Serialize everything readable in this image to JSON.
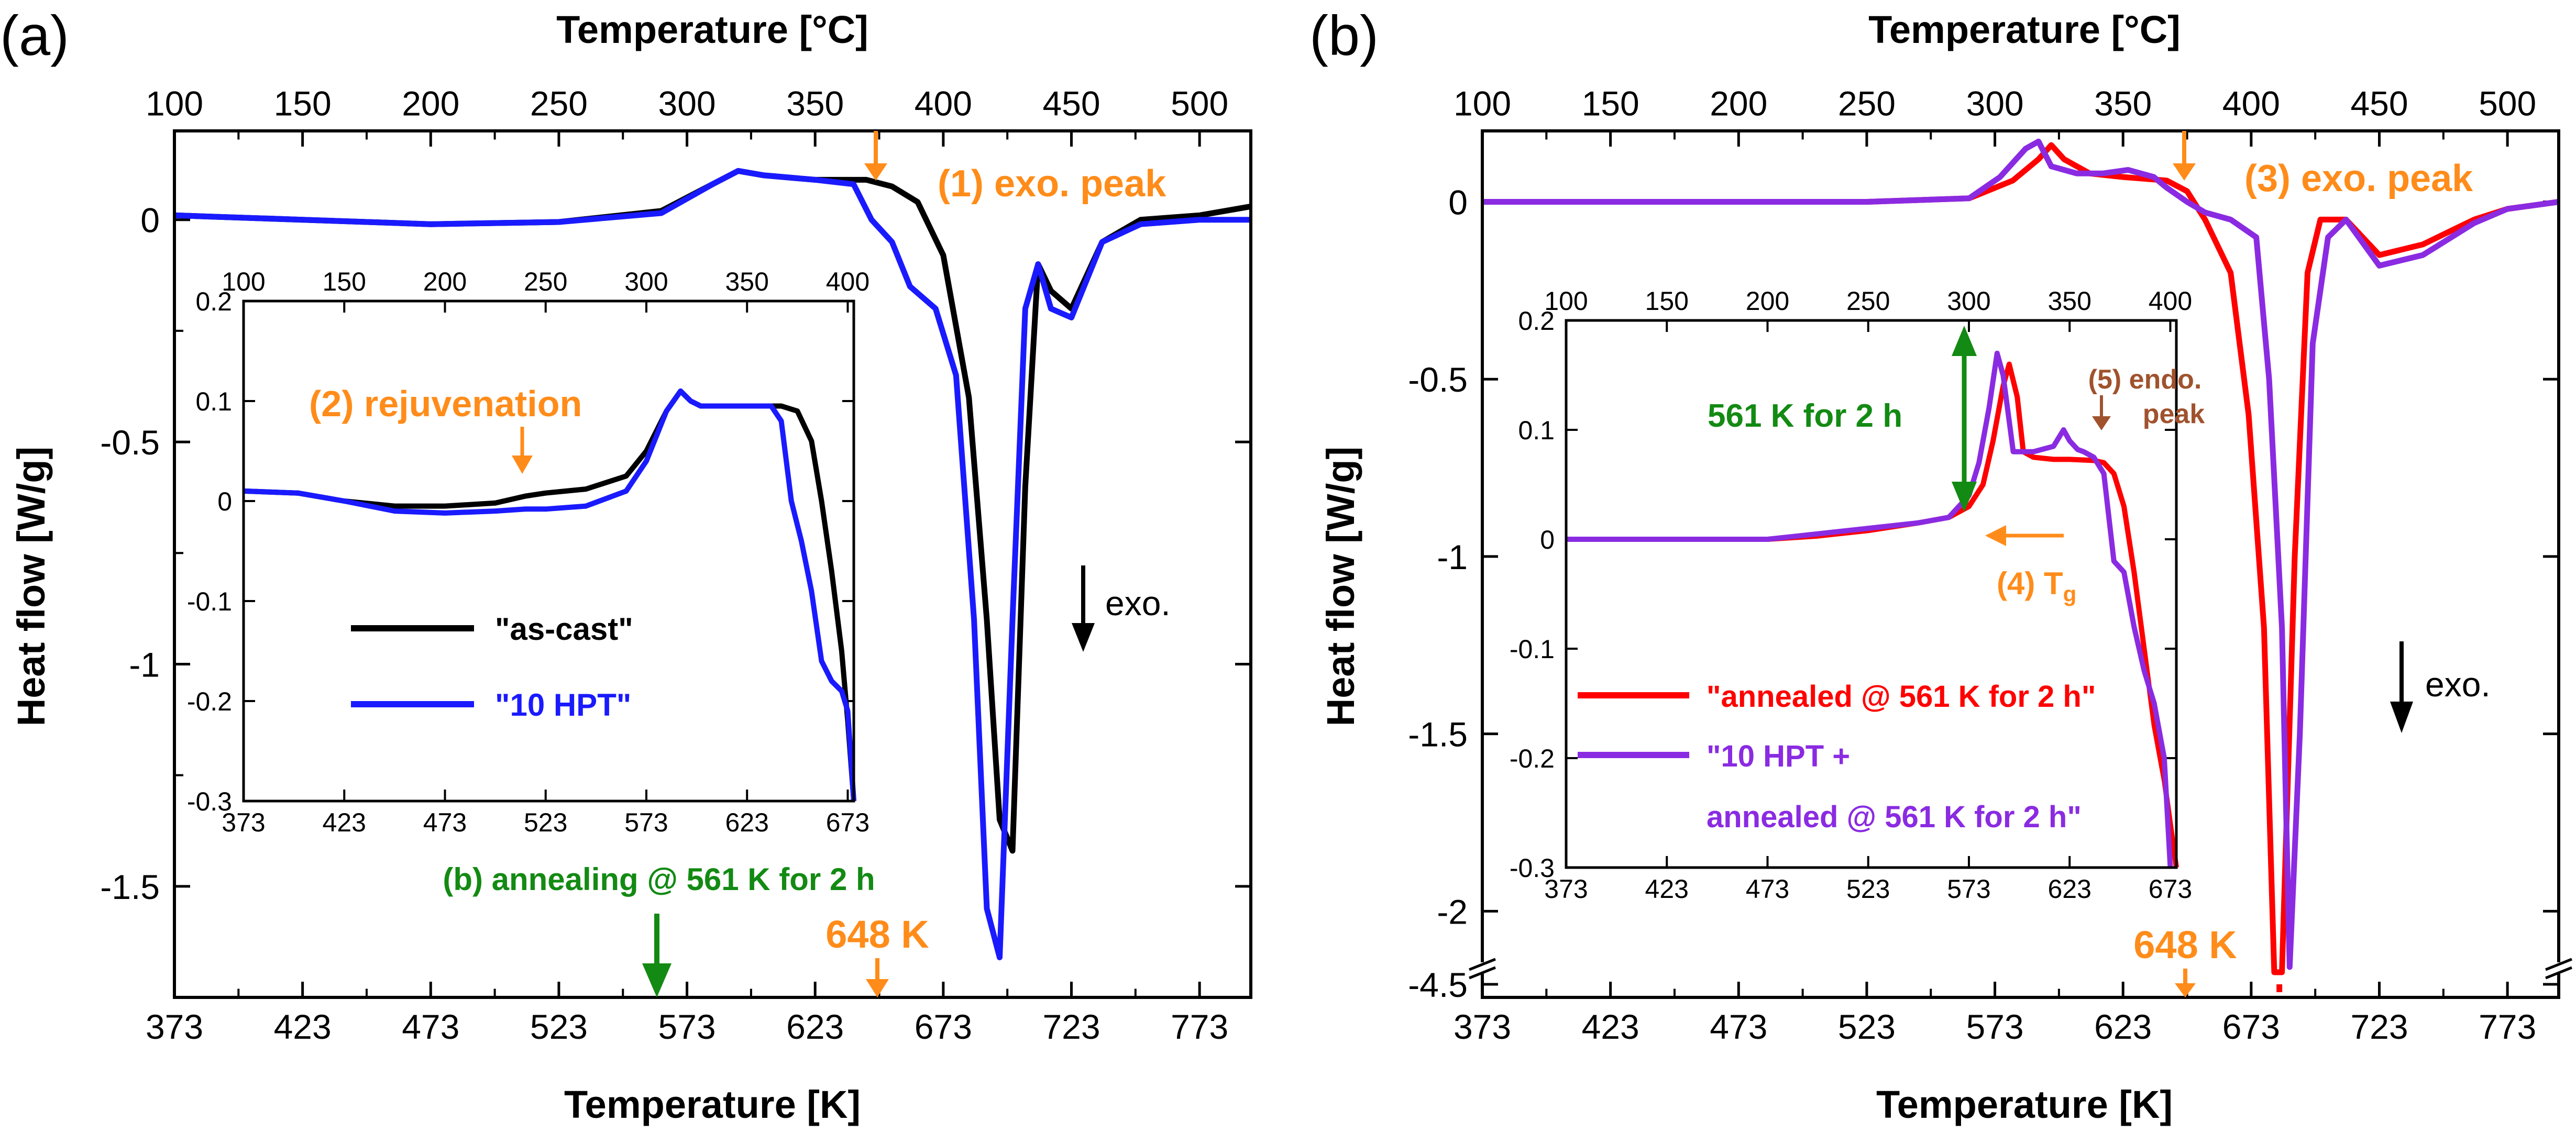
{
  "colors": {
    "black": "#000000",
    "blue": "#1a1aff",
    "red": "#ff0000",
    "purple": "#8a2be2",
    "orange": "#ff8c1a",
    "green": "#138a13",
    "brown": "#a0522d"
  },
  "chart_data": [
    {
      "type": "line",
      "panel_label": "(a)",
      "xlabel": "Temperature [K]",
      "x2label": "Temperature [°C]",
      "ylabel": "Heat flow [W/g]",
      "xlim": [
        373,
        793
      ],
      "ylim": [
        -1.75,
        0.2
      ],
      "x_ticks": [
        "373",
        "423",
        "473",
        "523",
        "573",
        "623",
        "673",
        "723",
        "773"
      ],
      "x2_ticks": [
        "100",
        "150",
        "200",
        "250",
        "300",
        "350",
        "400",
        "450",
        "500"
      ],
      "y_ticks": [
        "0",
        "-0.5",
        "-1",
        "-1.5"
      ],
      "series": [
        {
          "name": "\"as-cast\"",
          "color": "#000000",
          "x": [
            373,
            423,
            473,
            523,
            563,
            583,
            593,
            603,
            623,
            643,
            653,
            663,
            673,
            683,
            690,
            695,
            700,
            705,
            710,
            715,
            723,
            735,
            750,
            773,
            793
          ],
          "y": [
            0.01,
            0.0,
            -0.01,
            -0.005,
            0.02,
            0.08,
            0.11,
            0.1,
            0.09,
            0.09,
            0.075,
            0.04,
            -0.08,
            -0.4,
            -0.9,
            -1.35,
            -1.42,
            -0.6,
            -0.1,
            -0.16,
            -0.2,
            -0.05,
            0.0,
            0.01,
            0.03
          ]
        },
        {
          "name": "\"10 HPT\"",
          "color": "#1a1aff",
          "x": [
            373,
            423,
            473,
            523,
            563,
            583,
            593,
            603,
            623,
            638,
            645,
            653,
            660,
            670,
            678,
            685,
            690,
            695,
            700,
            705,
            710,
            715,
            723,
            735,
            750,
            773,
            793
          ],
          "y": [
            0.01,
            0.0,
            -0.01,
            -0.005,
            0.015,
            0.08,
            0.11,
            0.1,
            0.09,
            0.08,
            0.0,
            -0.05,
            -0.15,
            -0.2,
            -0.35,
            -0.9,
            -1.55,
            -1.66,
            -0.9,
            -0.2,
            -0.1,
            -0.2,
            -0.22,
            -0.05,
            -0.01,
            0.0,
            0.0
          ]
        }
      ],
      "annotations": [
        {
          "text": "(1) exo. peak",
          "color": "#ff8c1a",
          "x": 648
        },
        {
          "text": "(b) annealing @ 561 K for 2 h",
          "color": "#138a13",
          "x": 561
        },
        {
          "text": "648 K",
          "color": "#ff8c1a",
          "x": 648
        },
        {
          "text": "exo.",
          "color": "#000000"
        }
      ],
      "inset": {
        "xlim": [
          373,
          676
        ],
        "ylim": [
          -0.3,
          0.2
        ],
        "x_ticks": [
          "373",
          "423",
          "473",
          "523",
          "573",
          "623",
          "673"
        ],
        "x2_ticks": [
          "100",
          "150",
          "200",
          "250",
          "300",
          "350",
          "400"
        ],
        "y_ticks": [
          "0.2",
          "0.1",
          "0",
          "-0.1",
          "-0.2",
          "-0.3"
        ],
        "annotation": {
          "text": "(2) rejuvenation",
          "color": "#ff8c1a",
          "x": 513
        },
        "legend": [
          {
            "label": "\"as-cast\"",
            "color": "#000000"
          },
          {
            "label": "\"10 HPT\"",
            "color": "#1a1aff"
          }
        ],
        "series": [
          {
            "color": "#000000",
            "x": [
              373,
              400,
              423,
              448,
              473,
              498,
              513,
              523,
              543,
              563,
              573,
              583,
              590,
              595,
              600,
              610,
              623,
              640,
              648,
              655,
              660,
              665,
              670,
              673,
              676
            ],
            "y": [
              0.01,
              0.008,
              0.0,
              -0.005,
              -0.005,
              -0.002,
              0.005,
              0.008,
              0.012,
              0.025,
              0.05,
              0.09,
              0.11,
              0.1,
              0.095,
              0.095,
              0.095,
              0.095,
              0.09,
              0.06,
              0.0,
              -0.07,
              -0.15,
              -0.22,
              -0.3
            ]
          },
          {
            "color": "#1a1aff",
            "x": [
              373,
              400,
              423,
              448,
              473,
              498,
              513,
              523,
              543,
              563,
              573,
              583,
              590,
              595,
              600,
              610,
              623,
              635,
              640,
              645,
              650,
              655,
              660,
              665,
              670,
              673,
              676
            ],
            "y": [
              0.01,
              0.008,
              0.0,
              -0.01,
              -0.012,
              -0.01,
              -0.008,
              -0.008,
              -0.005,
              0.01,
              0.04,
              0.09,
              0.11,
              0.1,
              0.095,
              0.095,
              0.095,
              0.095,
              0.08,
              0.0,
              -0.04,
              -0.09,
              -0.16,
              -0.18,
              -0.19,
              -0.21,
              -0.3
            ]
          }
        ]
      }
    },
    {
      "type": "line",
      "panel_label": "(b)",
      "xlabel": "Temperature [K]",
      "x2label": "Temperature [°C]",
      "ylabel": "Heat flow [W/g]",
      "xlim": [
        373,
        793
      ],
      "x_ticks": [
        "373",
        "423",
        "473",
        "523",
        "573",
        "623",
        "673",
        "723",
        "773"
      ],
      "x2_ticks": [
        "100",
        "150",
        "200",
        "250",
        "300",
        "350",
        "400",
        "450",
        "500"
      ],
      "y_ticks": [
        "0",
        "-0.5",
        "-1",
        "-1.5",
        "-2",
        "-4.5"
      ],
      "broken_y_axis": {
        "upper_range": [
          -2.15,
          0.2
        ],
        "break_jump_to": -4.5
      },
      "series": [
        {
          "name": "\"annealed @ 561 K for 2 h\"",
          "color": "#ff0000",
          "x": [
            373,
            423,
            473,
            523,
            563,
            580,
            590,
            595,
            600,
            610,
            623,
            640,
            648,
            655,
            665,
            672,
            678,
            682,
            685,
            690,
            695,
            700,
            710,
            723,
            740,
            760,
            773,
            793
          ],
          "y": [
            0.0,
            0.0,
            0.0,
            0.0,
            0.01,
            0.06,
            0.12,
            0.16,
            0.12,
            0.08,
            0.07,
            0.06,
            0.03,
            -0.05,
            -0.2,
            -0.6,
            -1.2,
            -2.3,
            -2.3,
            -1.0,
            -0.2,
            -0.05,
            -0.05,
            -0.15,
            -0.12,
            -0.05,
            -0.02,
            0.0
          ]
        },
        {
          "name": "\"10 HPT + annealed @ 561 K for 2 h\"",
          "color": "#8a2be2",
          "x": [
            373,
            423,
            473,
            523,
            563,
            575,
            585,
            590,
            595,
            605,
            615,
            625,
            635,
            640,
            648,
            655,
            665,
            675,
            680,
            685,
            688,
            692,
            697,
            703,
            710,
            723,
            740,
            760,
            773,
            793
          ],
          "y": [
            0.0,
            0.0,
            0.0,
            0.0,
            0.01,
            0.07,
            0.15,
            0.17,
            0.1,
            0.08,
            0.08,
            0.09,
            0.07,
            0.04,
            0.0,
            -0.03,
            -0.05,
            -0.1,
            -0.5,
            -1.2,
            -2.2,
            -1.5,
            -0.4,
            -0.1,
            -0.05,
            -0.18,
            -0.15,
            -0.06,
            -0.02,
            0.0
          ]
        }
      ],
      "annotations": [
        {
          "text": "(3) exo. peak",
          "color": "#ff8c1a",
          "x": 648
        },
        {
          "text": "648 K",
          "color": "#ff8c1a",
          "x": 648
        },
        {
          "text": "exo.",
          "color": "#000000"
        }
      ],
      "inset": {
        "xlim": [
          373,
          676
        ],
        "ylim": [
          -0.3,
          0.2
        ],
        "x_ticks": [
          "373",
          "423",
          "473",
          "523",
          "573",
          "623",
          "673"
        ],
        "x2_ticks": [
          "100",
          "150",
          "200",
          "250",
          "300",
          "350",
          "400"
        ],
        "y_ticks": [
          "0.2",
          "0.1",
          "0",
          "-0.1",
          "-0.2",
          "-0.3"
        ],
        "annotations": [
          {
            "text": "561 K for 2 h",
            "color": "#138a13"
          },
          {
            "text": "(5) endo.",
            "color": "#a0522d"
          },
          {
            "text": "peak",
            "color": "#a0522d"
          },
          {
            "text": "(4) T",
            "sub": "g",
            "color": "#ff8c1a"
          }
        ],
        "legend": [
          {
            "label": "\"annealed @ 561 K for 2 h\"",
            "color": "#ff0000"
          },
          {
            "label": "\"10 HPT +",
            "label2": "annealed @ 561 K for 2 h\"",
            "color": "#8a2be2"
          }
        ],
        "series": [
          {
            "color": "#ff0000",
            "x": [
              373,
              423,
              473,
              498,
              523,
              548,
              563,
              573,
              580,
              585,
              590,
              593,
              597,
              600,
              605,
              615,
              623,
              635,
              640,
              645,
              650,
              655,
              660,
              665,
              670,
              673,
              676
            ],
            "y": [
              0.0,
              0.0,
              0.0,
              0.003,
              0.008,
              0.015,
              0.02,
              0.03,
              0.05,
              0.09,
              0.14,
              0.16,
              0.13,
              0.08,
              0.075,
              0.073,
              0.073,
              0.072,
              0.07,
              0.06,
              0.03,
              -0.03,
              -0.1,
              -0.17,
              -0.22,
              -0.26,
              -0.3
            ]
          },
          {
            "color": "#8a2be2",
            "x": [
              373,
              423,
              473,
              498,
              523,
              548,
              563,
              573,
              578,
              583,
              587,
              590,
              595,
              605,
              615,
              620,
              623,
              627,
              630,
              635,
              640,
              645,
              650,
              655,
              660,
              665,
              670,
              673
            ],
            "y": [
              0.0,
              0.0,
              0.0,
              0.005,
              0.01,
              0.015,
              0.02,
              0.04,
              0.07,
              0.12,
              0.17,
              0.15,
              0.08,
              0.08,
              0.085,
              0.1,
              0.09,
              0.082,
              0.08,
              0.075,
              0.06,
              -0.02,
              -0.03,
              -0.08,
              -0.12,
              -0.15,
              -0.2,
              -0.3
            ]
          }
        ]
      }
    }
  ]
}
